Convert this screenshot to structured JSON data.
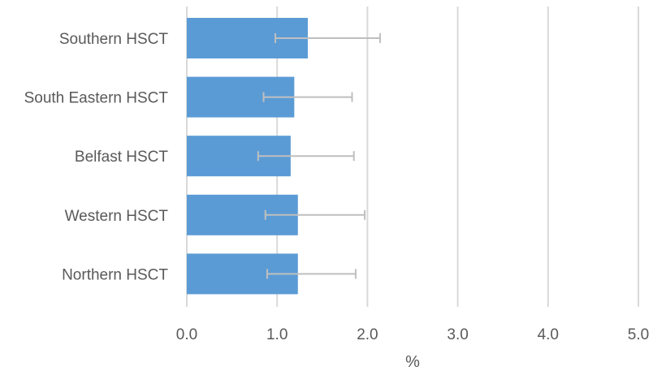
{
  "chart_data": {
    "type": "bar",
    "orientation": "horizontal",
    "title": "",
    "xlabel": "%",
    "ylabel": "",
    "xlim": [
      0,
      5
    ],
    "x_ticks": [
      "0.0",
      "1.0",
      "2.0",
      "3.0",
      "4.0",
      "5.0"
    ],
    "grid": "vertical",
    "legend": "none",
    "categories": [
      "Southern HSCT",
      "South Eastern HSCT",
      "Belfast HSCT",
      "Western HSCT",
      "Northern HSCT"
    ],
    "values": [
      1.34,
      1.19,
      1.15,
      1.23,
      1.23
    ],
    "error_low": [
      0.98,
      0.85,
      0.79,
      0.87,
      0.89
    ],
    "error_high": [
      2.14,
      1.83,
      1.85,
      1.97,
      1.87
    ],
    "colors": {
      "bar": "#5b9bd5",
      "error_bar": "#bfbfbf",
      "grid": "#d9d9d9",
      "text": "#595959"
    }
  }
}
